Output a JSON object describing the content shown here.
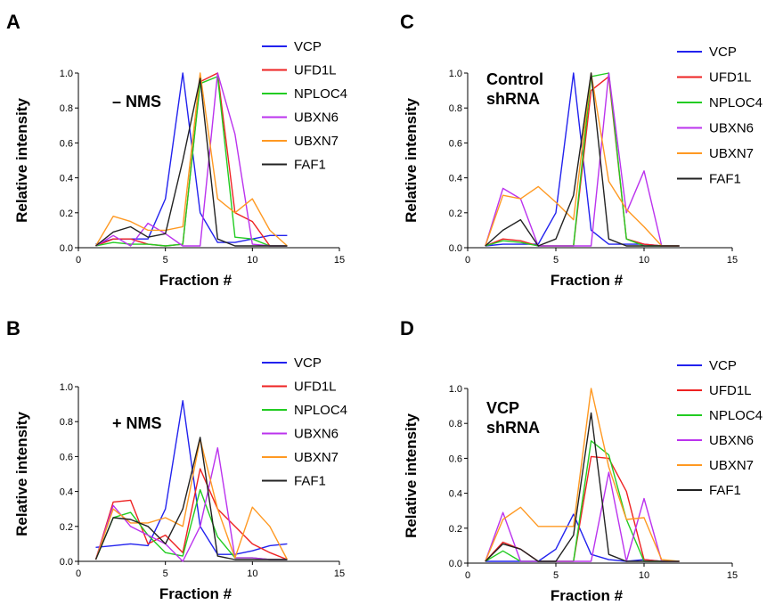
{
  "colors": {
    "VCP": "#2222ee",
    "UFD1L": "#ee2222",
    "NPLOC4": "#22cc22",
    "UBXN6": "#bb33ee",
    "UBXN7": "#ff9922",
    "FAF1": "#222222"
  },
  "chart_data": [
    {
      "type": "line",
      "panel": "A",
      "annotation": [
        "– NMS"
      ],
      "xlabel": "Fraction #",
      "ylabel": "Relative intensity",
      "xlim": [
        0,
        15
      ],
      "ylim": [
        0,
        1.0
      ],
      "xticks": [
        "0",
        "5",
        "10",
        "15"
      ],
      "yticks": [
        "0.0",
        "0.2",
        "0.4",
        "0.6",
        "0.8",
        "1.0"
      ],
      "x": [
        1,
        2,
        3,
        4,
        5,
        6,
        7,
        8,
        9,
        10,
        11,
        12
      ],
      "series": [
        {
          "name": "VCP",
          "values": [
            0.02,
            0.05,
            0.05,
            0.05,
            0.28,
            1.0,
            0.2,
            0.03,
            0.03,
            0.05,
            0.07,
            0.07
          ]
        },
        {
          "name": "UFD1L",
          "values": [
            0.01,
            0.05,
            0.05,
            0.02,
            0.01,
            0.02,
            0.95,
            1.0,
            0.2,
            0.15,
            0.01,
            0.01
          ]
        },
        {
          "name": "NPLOC4",
          "values": [
            0.01,
            0.03,
            0.02,
            0.02,
            0.01,
            0.02,
            0.94,
            0.98,
            0.06,
            0.05,
            0.01,
            0.01
          ]
        },
        {
          "name": "UBXN6",
          "values": [
            0.01,
            0.07,
            0.01,
            0.14,
            0.08,
            0.01,
            0.01,
            1.0,
            0.65,
            0.02,
            0.01,
            0.01
          ]
        },
        {
          "name": "UBXN7",
          "values": [
            0.01,
            0.18,
            0.15,
            0.1,
            0.1,
            0.12,
            1.0,
            0.28,
            0.2,
            0.28,
            0.1,
            0.01
          ]
        },
        {
          "name": "FAF1",
          "values": [
            0.01,
            0.09,
            0.12,
            0.06,
            0.08,
            0.5,
            0.97,
            0.05,
            0.01,
            0.01,
            0.01,
            0.01
          ]
        }
      ]
    },
    {
      "type": "line",
      "panel": "B",
      "annotation": [
        "+ NMS"
      ],
      "xlabel": "Fraction #",
      "ylabel": "Relative intensity",
      "xlim": [
        0,
        15
      ],
      "ylim": [
        0,
        1.0
      ],
      "xticks": [
        "0",
        "5",
        "10",
        "15"
      ],
      "yticks": [
        "0.0",
        "0.2",
        "0.4",
        "0.6",
        "0.8",
        "1.0"
      ],
      "x": [
        1,
        2,
        3,
        4,
        5,
        6,
        7,
        8,
        9,
        10,
        11,
        12
      ],
      "series": [
        {
          "name": "VCP",
          "values": [
            0.08,
            0.09,
            0.1,
            0.09,
            0.3,
            0.92,
            0.2,
            0.04,
            0.04,
            0.06,
            0.09,
            0.1
          ]
        },
        {
          "name": "UFD1L",
          "values": [
            0.01,
            0.34,
            0.35,
            0.1,
            0.15,
            0.05,
            0.53,
            0.3,
            0.2,
            0.1,
            0.05,
            0.01
          ]
        },
        {
          "name": "NPLOC4",
          "values": [
            0.01,
            0.25,
            0.28,
            0.15,
            0.05,
            0.03,
            0.41,
            0.14,
            0.02,
            0.02,
            0.01,
            0.01
          ]
        },
        {
          "name": "UBXN6",
          "values": [
            0.01,
            0.32,
            0.2,
            0.15,
            0.1,
            0.0,
            0.2,
            0.65,
            0.02,
            0.02,
            0.01,
            0.01
          ]
        },
        {
          "name": "UBXN7",
          "values": [
            0.01,
            0.3,
            0.22,
            0.22,
            0.25,
            0.2,
            0.7,
            0.3,
            0.02,
            0.31,
            0.2,
            0.01
          ]
        },
        {
          "name": "FAF1",
          "values": [
            0.01,
            0.25,
            0.24,
            0.2,
            0.1,
            0.3,
            0.71,
            0.03,
            0.01,
            0.01,
            0.01,
            0.01
          ]
        }
      ]
    },
    {
      "type": "line",
      "panel": "C",
      "annotation": [
        "Control",
        "shRNA"
      ],
      "xlabel": "Fraction #",
      "ylabel": "Relative intensity",
      "xlim": [
        0,
        15
      ],
      "ylim": [
        0,
        1.0
      ],
      "xticks": [
        "0",
        "5",
        "10",
        "15"
      ],
      "yticks": [
        "0.0",
        "0.2",
        "0.4",
        "0.6",
        "0.8",
        "1.0"
      ],
      "x": [
        1,
        2,
        3,
        4,
        5,
        6,
        7,
        8,
        9,
        10,
        11,
        12
      ],
      "series": [
        {
          "name": "VCP",
          "values": [
            0.01,
            0.02,
            0.02,
            0.02,
            0.2,
            1.0,
            0.1,
            0.02,
            0.02,
            0.02,
            0.01,
            0.01
          ]
        },
        {
          "name": "UFD1L",
          "values": [
            0.01,
            0.05,
            0.04,
            0.01,
            0.01,
            0.01,
            0.9,
            0.98,
            0.05,
            0.02,
            0.01,
            0.01
          ]
        },
        {
          "name": "NPLOC4",
          "values": [
            0.01,
            0.04,
            0.03,
            0.01,
            0.01,
            0.01,
            0.98,
            1.0,
            0.05,
            0.01,
            0.01,
            0.01
          ]
        },
        {
          "name": "UBXN6",
          "values": [
            0.01,
            0.34,
            0.28,
            0.01,
            0.01,
            0.01,
            0.01,
            1.0,
            0.2,
            0.44,
            0.01,
            0.01
          ]
        },
        {
          "name": "UBXN7",
          "values": [
            0.01,
            0.3,
            0.28,
            0.35,
            0.26,
            0.16,
            1.0,
            0.38,
            0.22,
            0.12,
            0.01,
            0.01
          ]
        },
        {
          "name": "FAF1",
          "values": [
            0.01,
            0.1,
            0.16,
            0.01,
            0.05,
            0.3,
            1.0,
            0.05,
            0.01,
            0.01,
            0.01,
            0.01
          ]
        }
      ]
    },
    {
      "type": "line",
      "panel": "D",
      "annotation": [
        "VCP",
        "shRNA"
      ],
      "xlabel": "Fraction #",
      "ylabel": "Relative intensity",
      "xlim": [
        0,
        15
      ],
      "ylim": [
        0,
        1.0
      ],
      "xticks": [
        "0",
        "5",
        "10",
        "15"
      ],
      "yticks": [
        "0.0",
        "0.2",
        "0.4",
        "0.6",
        "0.8",
        "1.0"
      ],
      "x": [
        1,
        2,
        3,
        4,
        5,
        6,
        7,
        8,
        9,
        10,
        11,
        12
      ],
      "series": [
        {
          "name": "VCP",
          "values": [
            0.01,
            0.01,
            0.01,
            0.01,
            0.08,
            0.28,
            0.05,
            0.02,
            0.01,
            0.02,
            0.01,
            0.01
          ]
        },
        {
          "name": "UFD1L",
          "values": [
            0.01,
            0.12,
            0.08,
            0.01,
            0.01,
            0.01,
            0.61,
            0.6,
            0.41,
            0.02,
            0.01,
            0.01
          ]
        },
        {
          "name": "NPLOC4",
          "values": [
            0.01,
            0.07,
            0.01,
            0.01,
            0.01,
            0.01,
            0.7,
            0.62,
            0.25,
            0.01,
            0.01,
            0.01
          ]
        },
        {
          "name": "UBXN6",
          "values": [
            0.01,
            0.29,
            0.01,
            0.01,
            0.01,
            0.01,
            0.01,
            0.52,
            0.01,
            0.37,
            0.01,
            0.01
          ]
        },
        {
          "name": "UBXN7",
          "values": [
            0.01,
            0.25,
            0.32,
            0.21,
            0.21,
            0.21,
            1.0,
            0.55,
            0.25,
            0.26,
            0.02,
            0.01
          ]
        },
        {
          "name": "FAF1",
          "values": [
            0.01,
            0.11,
            0.08,
            0.01,
            0.01,
            0.16,
            0.86,
            0.05,
            0.01,
            0.01,
            0.01,
            0.01
          ]
        }
      ]
    }
  ]
}
